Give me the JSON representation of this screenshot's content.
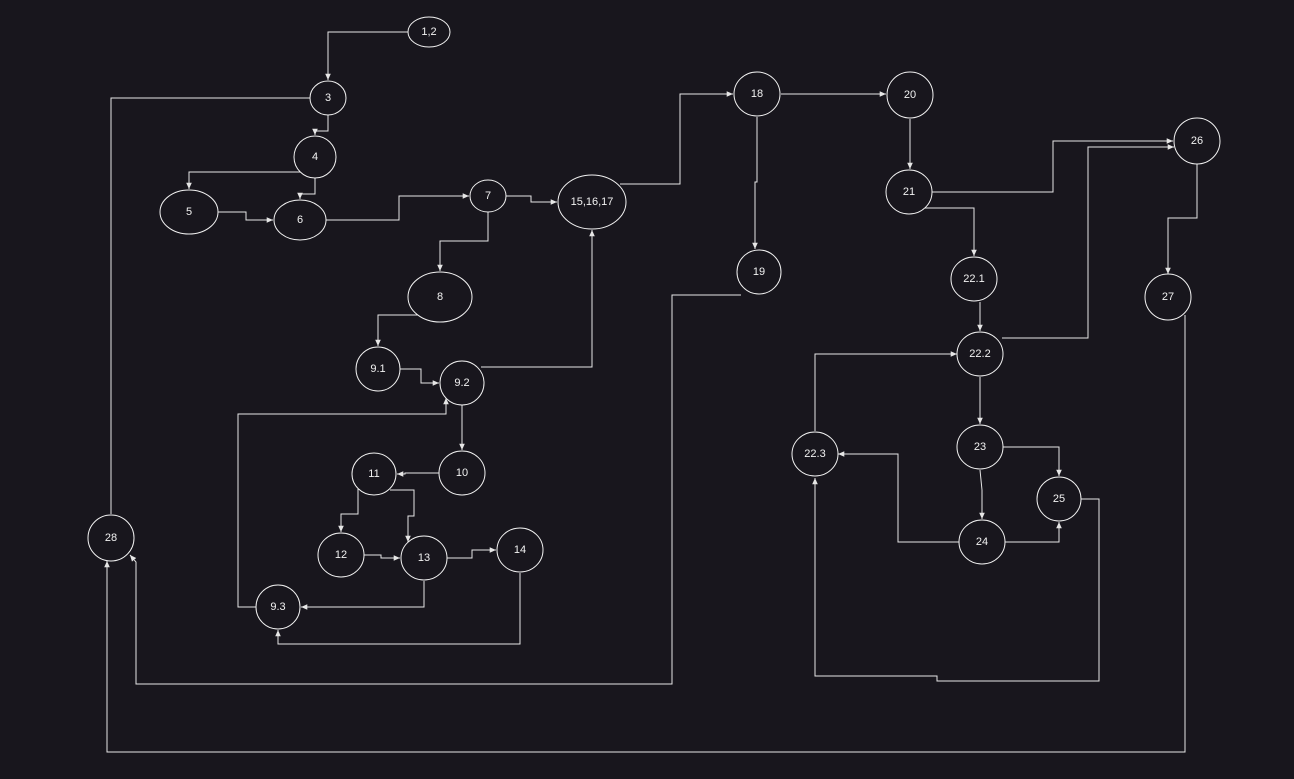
{
  "diagram": {
    "background": "#18161d",
    "line_color": "#e6e6e6",
    "nodes": [
      {
        "id": "n1_2",
        "label": "1,2"
      },
      {
        "id": "n3",
        "label": "3"
      },
      {
        "id": "n4",
        "label": "4"
      },
      {
        "id": "n5",
        "label": "5"
      },
      {
        "id": "n6",
        "label": "6"
      },
      {
        "id": "n7",
        "label": "7"
      },
      {
        "id": "n15_16_17",
        "label": "15,16,17"
      },
      {
        "id": "n8",
        "label": "8"
      },
      {
        "id": "n9_1",
        "label": "9.1"
      },
      {
        "id": "n9_2",
        "label": "9.2"
      },
      {
        "id": "n10",
        "label": "10"
      },
      {
        "id": "n11",
        "label": "11"
      },
      {
        "id": "n12",
        "label": "12"
      },
      {
        "id": "n13",
        "label": "13"
      },
      {
        "id": "n14",
        "label": "14"
      },
      {
        "id": "n9_3",
        "label": "9.3"
      },
      {
        "id": "n28",
        "label": "28"
      },
      {
        "id": "n18",
        "label": "18"
      },
      {
        "id": "n19",
        "label": "19"
      },
      {
        "id": "n20",
        "label": "20"
      },
      {
        "id": "n21",
        "label": "21"
      },
      {
        "id": "n22_1",
        "label": "22.1"
      },
      {
        "id": "n22_2",
        "label": "22.2"
      },
      {
        "id": "n22_3",
        "label": "22.3"
      },
      {
        "id": "n23",
        "label": "23"
      },
      {
        "id": "n24",
        "label": "24"
      },
      {
        "id": "n25",
        "label": "25"
      },
      {
        "id": "n26",
        "label": "26"
      },
      {
        "id": "n27",
        "label": "27"
      }
    ],
    "edges": [
      {
        "from": "n1_2",
        "to": "n3"
      },
      {
        "from": "n3",
        "to": "n4"
      },
      {
        "from": "n3",
        "to": "n28"
      },
      {
        "from": "n4",
        "to": "n5"
      },
      {
        "from": "n4",
        "to": "n6"
      },
      {
        "from": "n5",
        "to": "n6"
      },
      {
        "from": "n6",
        "to": "n7"
      },
      {
        "from": "n7",
        "to": "n15_16_17"
      },
      {
        "from": "n7",
        "to": "n8"
      },
      {
        "from": "n8",
        "to": "n9_1"
      },
      {
        "from": "n9_1",
        "to": "n9_2"
      },
      {
        "from": "n9_2",
        "to": "n15_16_17"
      },
      {
        "from": "n9_2",
        "to": "n10"
      },
      {
        "from": "n10",
        "to": "n11"
      },
      {
        "from": "n11",
        "to": "n12"
      },
      {
        "from": "n11",
        "to": "n13"
      },
      {
        "from": "n12",
        "to": "n13"
      },
      {
        "from": "n13",
        "to": "n14"
      },
      {
        "from": "n13",
        "to": "n9_3"
      },
      {
        "from": "n14",
        "to": "n9_3"
      },
      {
        "from": "n9_3",
        "to": "n9_2"
      },
      {
        "from": "n15_16_17",
        "to": "n18"
      },
      {
        "from": "n18",
        "to": "n20"
      },
      {
        "from": "n18",
        "to": "n19"
      },
      {
        "from": "n19",
        "to": "n28"
      },
      {
        "from": "n20",
        "to": "n21"
      },
      {
        "from": "n21",
        "to": "n26"
      },
      {
        "from": "n21",
        "to": "n22_1"
      },
      {
        "from": "n22_1",
        "to": "n22_2"
      },
      {
        "from": "n22_2",
        "to": "n26"
      },
      {
        "from": "n22_2",
        "to": "n23"
      },
      {
        "from": "n23",
        "to": "n25"
      },
      {
        "from": "n23",
        "to": "n24"
      },
      {
        "from": "n24",
        "to": "n25"
      },
      {
        "from": "n24",
        "to": "n22_3"
      },
      {
        "from": "n25",
        "to": "n22_3"
      },
      {
        "from": "n22_3",
        "to": "n22_2"
      },
      {
        "from": "n26",
        "to": "n27"
      },
      {
        "from": "n27",
        "to": "n28"
      }
    ]
  }
}
